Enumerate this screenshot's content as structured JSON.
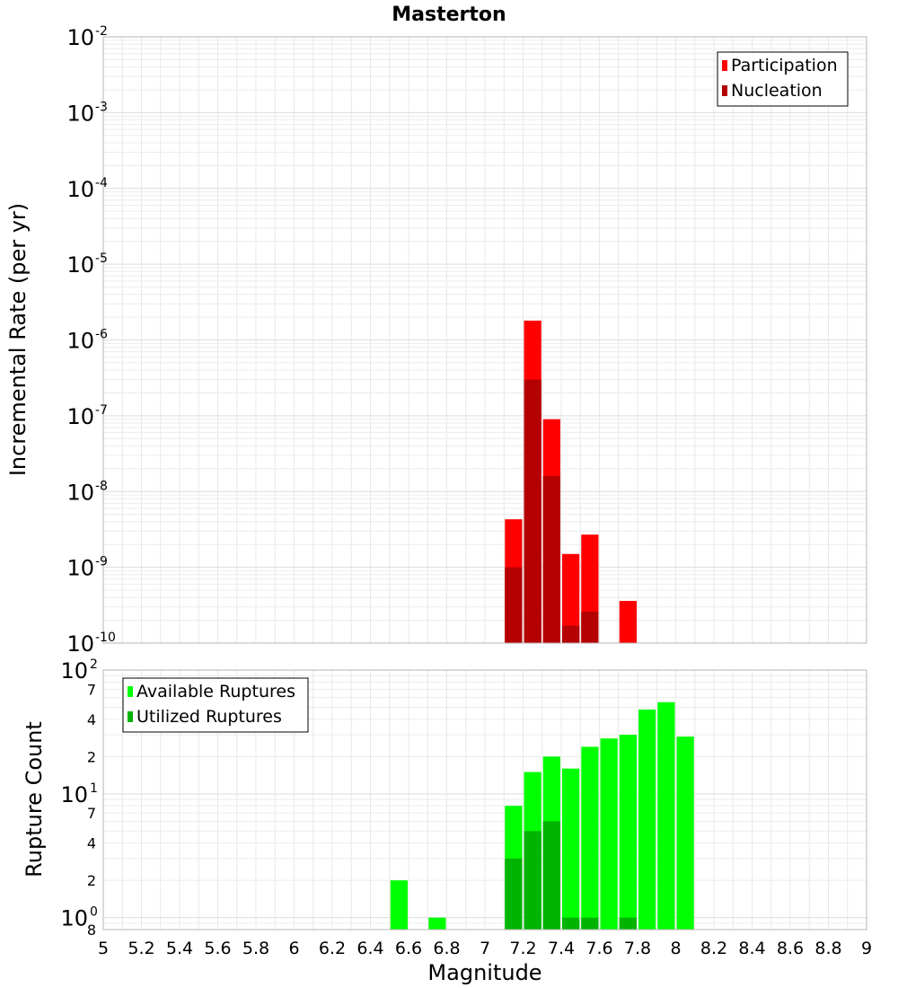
{
  "chart_data": [
    {
      "type": "bar",
      "title": "Masterton",
      "ylabel": "Incremental Rate (per yr)",
      "xlabel": "",
      "xlim": [
        5,
        9
      ],
      "ylim": [
        1e-10,
        0.01
      ],
      "yscale": "log",
      "y_tick_labels": [
        {
          "base": "10",
          "exp": "-2",
          "value": 0.01
        },
        {
          "base": "10",
          "exp": "-3",
          "value": 0.001
        },
        {
          "base": "10",
          "exp": "-4",
          "value": 0.0001
        },
        {
          "base": "10",
          "exp": "-5",
          "value": 1e-05
        },
        {
          "base": "10",
          "exp": "-6",
          "value": 1e-06
        },
        {
          "base": "10",
          "exp": "-7",
          "value": 1e-07
        },
        {
          "base": "10",
          "exp": "-8",
          "value": 1e-08
        },
        {
          "base": "10",
          "exp": "-9",
          "value": 1e-09
        },
        {
          "base": "10",
          "exp": "-10",
          "value": 1e-10
        }
      ],
      "legend": {
        "placement": "top-right",
        "entries": [
          {
            "label": "Participation",
            "color": "#ff0000"
          },
          {
            "label": "Nucleation",
            "color": "#b40000"
          }
        ]
      },
      "series": [
        {
          "name": "Participation",
          "color": "#ff0000",
          "x": [
            7.15,
            7.25,
            7.35,
            7.45,
            7.55,
            7.75
          ],
          "values": [
            4.3e-09,
            1.8e-06,
            9e-08,
            1.5e-09,
            2.7e-09,
            3.6e-10
          ]
        },
        {
          "name": "Nucleation",
          "color": "#b40000",
          "x": [
            7.15,
            7.25,
            7.35,
            7.45,
            7.55
          ],
          "values": [
            1e-09,
            3e-07,
            1.6e-08,
            1.7e-10,
            2.6e-10
          ]
        }
      ]
    },
    {
      "type": "bar",
      "title": "",
      "ylabel": "Rupture Count",
      "xlabel": "Magnitude",
      "xlim": [
        5,
        9
      ],
      "ylim": [
        0.8,
        100
      ],
      "yscale": "log",
      "x_ticks": [
        "5",
        "5.2",
        "5.4",
        "5.6",
        "5.8",
        "6",
        "6.2",
        "6.4",
        "6.6",
        "6.8",
        "7",
        "7.2",
        "7.4",
        "7.6",
        "7.8",
        "8",
        "8.2",
        "8.4",
        "8.6",
        "8.8",
        "9"
      ],
      "y_major_ticks": [
        {
          "base": "10",
          "exp": "2",
          "value": 100
        },
        {
          "base": "10",
          "exp": "1",
          "value": 10
        },
        {
          "base": "10",
          "exp": "0",
          "value": 1
        }
      ],
      "y_minor_ticks": [
        {
          "label": "7",
          "value": 70
        },
        {
          "label": "4",
          "value": 40
        },
        {
          "label": "2",
          "value": 20
        },
        {
          "label": "7",
          "value": 7
        },
        {
          "label": "4",
          "value": 4
        },
        {
          "label": "2",
          "value": 2
        },
        {
          "label": "8",
          "value": 0.8
        }
      ],
      "legend": {
        "placement": "top-left",
        "entries": [
          {
            "label": "Available Ruptures",
            "color": "#00ff00"
          },
          {
            "label": "Utilized Ruptures",
            "color": "#00b400"
          }
        ]
      },
      "series": [
        {
          "name": "Available Ruptures",
          "color": "#00ff00",
          "x": [
            6.55,
            6.75,
            7.15,
            7.25,
            7.35,
            7.45,
            7.55,
            7.65,
            7.75,
            7.85,
            7.95,
            8.05
          ],
          "values": [
            2,
            1,
            8,
            15,
            20,
            16,
            24,
            28,
            30,
            48,
            55,
            29
          ]
        },
        {
          "name": "Utilized Ruptures",
          "color": "#00b400",
          "x": [
            7.15,
            7.25,
            7.35,
            7.45,
            7.55,
            7.75
          ],
          "values": [
            3,
            5,
            6,
            1,
            1,
            1
          ]
        }
      ]
    }
  ]
}
